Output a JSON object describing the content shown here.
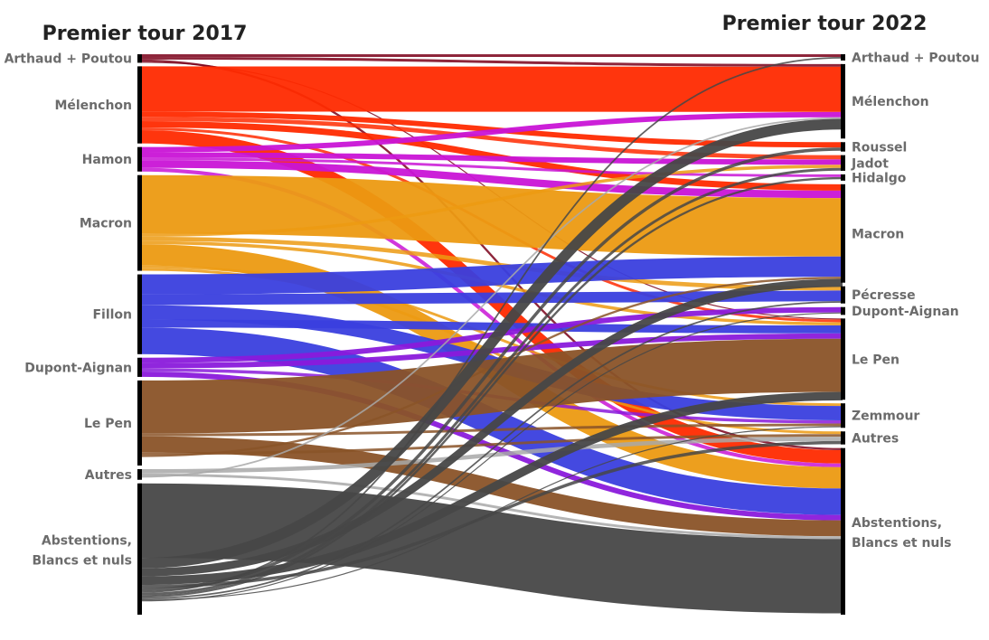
{
  "chart_data": {
    "type": "sankey",
    "title_left": "Premier tour 2017",
    "title_right": "Premier tour 2022",
    "colors": {
      "red": "#ff2a00",
      "magenta": "#c914d6",
      "orange": "#ec9a12",
      "blue": "#3a3fde",
      "violet": "#8a1adb",
      "brown": "#8a5328",
      "gray": "#a8a8a8",
      "dark": "#474747",
      "wine": "#7a0019"
    },
    "nodes_2017": [
      {
        "label": "Arthaud + Poutou",
        "color": "wine",
        "value": 1.6
      },
      {
        "label": "Mélenchon",
        "color": "red",
        "value": 14.5
      },
      {
        "label": "Hamon",
        "color": "magenta",
        "value": 4.6
      },
      {
        "label": "Macron",
        "color": "orange",
        "value": 18.0
      },
      {
        "label": "Fillon",
        "color": "blue",
        "value": 15.0
      },
      {
        "label": "Dupont-Aignan",
        "color": "violet",
        "value": 3.6
      },
      {
        "label": "Le Pen",
        "color": "brown",
        "value": 16.0
      },
      {
        "label": "Autres",
        "color": "gray",
        "value": 2.0
      },
      {
        "label": "Abstentions,",
        "label2": "Blancs et nuls",
        "color": "dark",
        "value": 24.7
      }
    ],
    "nodes_2022": [
      {
        "label": "Arthaud + Poutou",
        "color": "wine",
        "value": 1.2
      },
      {
        "label": "Mélenchon",
        "color": "red",
        "value": 14.3
      },
      {
        "label": "Roussel",
        "color": "red",
        "value": 1.8
      },
      {
        "label": "Jadot",
        "color": "red",
        "value": 3.0
      },
      {
        "label": "Hidalgo",
        "color": "red",
        "value": 1.2
      },
      {
        "label": "Macron",
        "color": "orange",
        "value": 18.9
      },
      {
        "label": "Pécresse",
        "color": "blue",
        "value": 3.3
      },
      {
        "label": "Dupont-Aignan",
        "color": "violet",
        "value": 1.5
      },
      {
        "label": "Le Pen",
        "color": "brown",
        "value": 15.6
      },
      {
        "label": "Zemmour",
        "color": "blue",
        "value": 4.7
      },
      {
        "label": "Autres",
        "color": "gray",
        "value": 2.5
      },
      {
        "label": "Abstentions,",
        "label2": "Blancs et nuls",
        "color": "dark",
        "value": 32.0
      }
    ]
  }
}
